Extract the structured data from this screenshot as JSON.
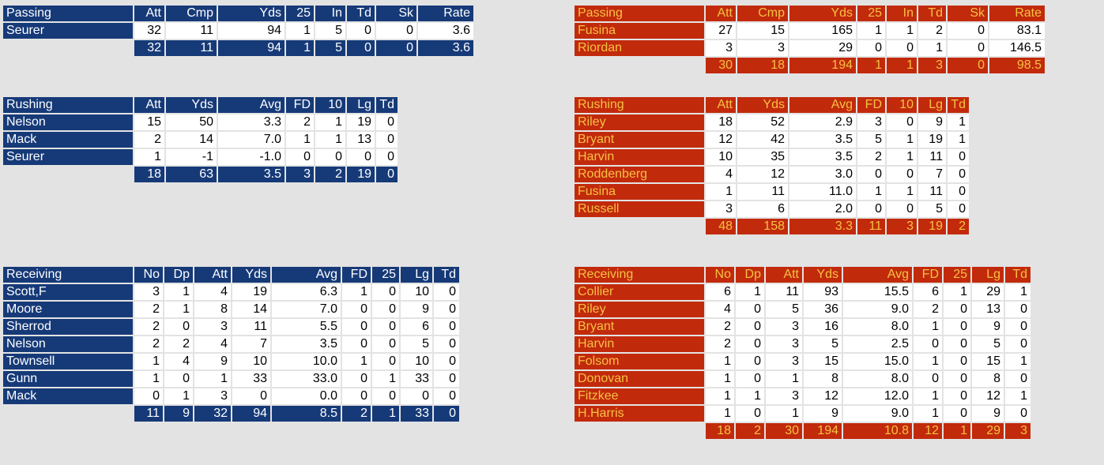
{
  "colors": {
    "blue": "#163a78",
    "red": "#c22a0c",
    "gold": "#f5c242",
    "background": "#e3e3e3"
  },
  "left": {
    "passing": {
      "headers": [
        "Passing",
        "Att",
        "Cmp",
        "Yds",
        "25",
        "In",
        "Td",
        "Sk",
        "Rate"
      ],
      "rows": [
        [
          "Seurer",
          "32",
          "11",
          "94",
          "1",
          "5",
          "0",
          "0",
          "3.6"
        ]
      ],
      "total": [
        "32",
        "11",
        "94",
        "1",
        "5",
        "0",
        "0",
        "3.6"
      ]
    },
    "rushing": {
      "headers": [
        "Rushing",
        "Att",
        "Yds",
        "Avg",
        "FD",
        "10",
        "Lg",
        "Td"
      ],
      "rows": [
        [
          "Nelson",
          "15",
          "50",
          "3.3",
          "2",
          "1",
          "19",
          "0"
        ],
        [
          "Mack",
          "2",
          "14",
          "7.0",
          "1",
          "1",
          "13",
          "0"
        ],
        [
          "Seurer",
          "1",
          "-1",
          "-1.0",
          "0",
          "0",
          "0",
          "0"
        ]
      ],
      "total": [
        "18",
        "63",
        "3.5",
        "3",
        "2",
        "19",
        "0"
      ]
    },
    "receiving": {
      "headers": [
        "Receiving",
        "No",
        "Dp",
        "Att",
        "Yds",
        "Avg",
        "FD",
        "25",
        "Lg",
        "Td"
      ],
      "rows": [
        [
          "Scott,F",
          "3",
          "1",
          "4",
          "19",
          "6.3",
          "1",
          "0",
          "10",
          "0"
        ],
        [
          "Moore",
          "2",
          "1",
          "8",
          "14",
          "7.0",
          "0",
          "0",
          "9",
          "0"
        ],
        [
          "Sherrod",
          "2",
          "0",
          "3",
          "11",
          "5.5",
          "0",
          "0",
          "6",
          "0"
        ],
        [
          "Nelson",
          "2",
          "2",
          "4",
          "7",
          "3.5",
          "0",
          "0",
          "5",
          "0"
        ],
        [
          "Townsell",
          "1",
          "4",
          "9",
          "10",
          "10.0",
          "1",
          "0",
          "10",
          "0"
        ],
        [
          "Gunn",
          "1",
          "0",
          "1",
          "33",
          "33.0",
          "0",
          "1",
          "33",
          "0"
        ],
        [
          "Mack",
          "0",
          "1",
          "3",
          "0",
          "0.0",
          "0",
          "0",
          "0",
          "0"
        ]
      ],
      "total": [
        "11",
        "9",
        "32",
        "94",
        "8.5",
        "2",
        "1",
        "33",
        "0"
      ]
    }
  },
  "right": {
    "passing": {
      "headers": [
        "Passing",
        "Att",
        "Cmp",
        "Yds",
        "25",
        "In",
        "Td",
        "Sk",
        "Rate"
      ],
      "rows": [
        [
          "Fusina",
          "27",
          "15",
          "165",
          "1",
          "1",
          "2",
          "0",
          "83.1"
        ],
        [
          "Riordan",
          "3",
          "3",
          "29",
          "0",
          "0",
          "1",
          "0",
          "146.5"
        ]
      ],
      "total": [
        "30",
        "18",
        "194",
        "1",
        "1",
        "3",
        "0",
        "98.5"
      ]
    },
    "rushing": {
      "headers": [
        "Rushing",
        "Att",
        "Yds",
        "Avg",
        "FD",
        "10",
        "Lg",
        "Td"
      ],
      "rows": [
        [
          "Riley",
          "18",
          "52",
          "2.9",
          "3",
          "0",
          "9",
          "1"
        ],
        [
          "Bryant",
          "12",
          "42",
          "3.5",
          "5",
          "1",
          "19",
          "1"
        ],
        [
          "Harvin",
          "10",
          "35",
          "3.5",
          "2",
          "1",
          "11",
          "0"
        ],
        [
          "Roddenberg",
          "4",
          "12",
          "3.0",
          "0",
          "0",
          "7",
          "0"
        ],
        [
          "Fusina",
          "1",
          "11",
          "11.0",
          "1",
          "1",
          "11",
          "0"
        ],
        [
          "Russell",
          "3",
          "6",
          "2.0",
          "0",
          "0",
          "5",
          "0"
        ]
      ],
      "total": [
        "48",
        "158",
        "3.3",
        "11",
        "3",
        "19",
        "2"
      ]
    },
    "receiving": {
      "headers": [
        "Receiving",
        "No",
        "Dp",
        "Att",
        "Yds",
        "Avg",
        "FD",
        "25",
        "Lg",
        "Td"
      ],
      "rows": [
        [
          "Collier",
          "6",
          "1",
          "11",
          "93",
          "15.5",
          "6",
          "1",
          "29",
          "1"
        ],
        [
          "Riley",
          "4",
          "0",
          "5",
          "36",
          "9.0",
          "2",
          "0",
          "13",
          "0"
        ],
        [
          "Bryant",
          "2",
          "0",
          "3",
          "16",
          "8.0",
          "1",
          "0",
          "9",
          "0"
        ],
        [
          "Harvin",
          "2",
          "0",
          "3",
          "5",
          "2.5",
          "0",
          "0",
          "5",
          "0"
        ],
        [
          "Folsom",
          "1",
          "0",
          "3",
          "15",
          "15.0",
          "1",
          "0",
          "15",
          "1"
        ],
        [
          "Donovan",
          "1",
          "0",
          "1",
          "8",
          "8.0",
          "0",
          "0",
          "8",
          "0"
        ],
        [
          "Fitzkee",
          "1",
          "1",
          "3",
          "12",
          "12.0",
          "1",
          "0",
          "12",
          "1"
        ],
        [
          "H.Harris",
          "1",
          "0",
          "1",
          "9",
          "9.0",
          "1",
          "0",
          "9",
          "0"
        ]
      ],
      "total": [
        "18",
        "2",
        "30",
        "194",
        "10.8",
        "12",
        "1",
        "29",
        "3"
      ]
    }
  }
}
